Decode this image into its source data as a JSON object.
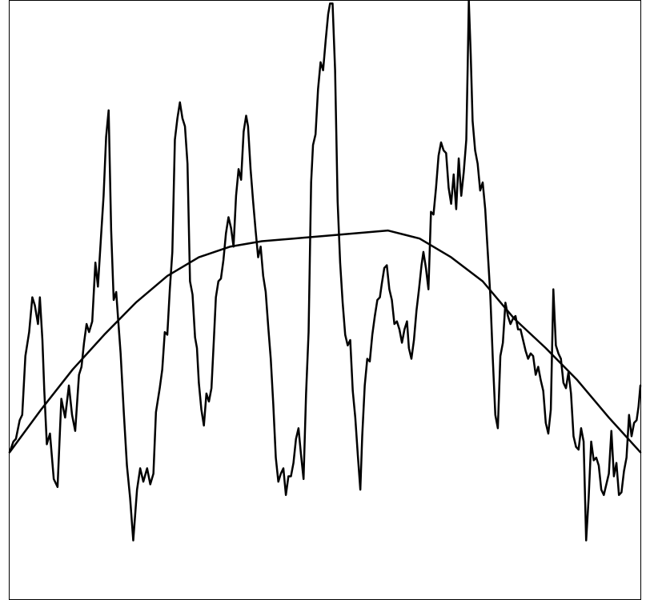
{
  "chart_data": {
    "type": "line",
    "title": "",
    "xlabel": "",
    "ylabel": "",
    "grid": false,
    "legend": "none",
    "xlim": [
      0,
      1
    ],
    "ylim": [
      -1.08,
      1.16
    ],
    "colors": {
      "line": "#000000",
      "frame": "#000000",
      "background": "#ffffff"
    },
    "series": [
      {
        "values": [
          [
            0.0,
            -0.53
          ],
          [
            0.006,
            -0.49
          ],
          [
            0.01,
            -0.48
          ],
          [
            0.016,
            -0.41
          ],
          [
            0.02,
            -0.39
          ],
          [
            0.025,
            -0.17
          ],
          [
            0.031,
            -0.08
          ],
          [
            0.036,
            0.05
          ],
          [
            0.04,
            0.02
          ],
          [
            0.045,
            -0.05
          ],
          [
            0.048,
            0.05
          ],
          [
            0.052,
            -0.11
          ],
          [
            0.055,
            -0.3
          ],
          [
            0.059,
            -0.5
          ],
          [
            0.064,
            -0.46
          ],
          [
            0.07,
            -0.63
          ],
          [
            0.076,
            -0.66
          ],
          [
            0.082,
            -0.33
          ],
          [
            0.088,
            -0.4
          ],
          [
            0.094,
            -0.28
          ],
          [
            0.099,
            -0.39
          ],
          [
            0.104,
            -0.45
          ],
          [
            0.11,
            -0.24
          ],
          [
            0.114,
            -0.21
          ],
          [
            0.118,
            -0.12
          ],
          [
            0.122,
            -0.05
          ],
          [
            0.126,
            -0.08
          ],
          [
            0.131,
            -0.04
          ],
          [
            0.136,
            0.18
          ],
          [
            0.14,
            0.09
          ],
          [
            0.145,
            0.28
          ],
          [
            0.149,
            0.43
          ],
          [
            0.153,
            0.65
          ],
          [
            0.157,
            0.75
          ],
          [
            0.161,
            0.3
          ],
          [
            0.165,
            0.04
          ],
          [
            0.169,
            0.07
          ],
          [
            0.172,
            -0.03
          ],
          [
            0.176,
            -0.16
          ],
          [
            0.181,
            -0.38
          ],
          [
            0.186,
            -0.58
          ],
          [
            0.191,
            -0.7
          ],
          [
            0.196,
            -0.86
          ],
          [
            0.202,
            -0.67
          ],
          [
            0.207,
            -0.59
          ],
          [
            0.212,
            -0.64
          ],
          [
            0.218,
            -0.59
          ],
          [
            0.223,
            -0.65
          ],
          [
            0.228,
            -0.61
          ],
          [
            0.232,
            -0.38
          ],
          [
            0.238,
            -0.29
          ],
          [
            0.242,
            -0.22
          ],
          [
            0.246,
            -0.08
          ],
          [
            0.25,
            -0.09
          ],
          [
            0.254,
            0.08
          ],
          [
            0.258,
            0.22
          ],
          [
            0.262,
            0.64
          ],
          [
            0.266,
            0.72
          ],
          [
            0.27,
            0.78
          ],
          [
            0.274,
            0.72
          ],
          [
            0.278,
            0.69
          ],
          [
            0.282,
            0.55
          ],
          [
            0.286,
            0.11
          ],
          [
            0.29,
            0.06
          ],
          [
            0.294,
            -0.1
          ],
          [
            0.297,
            -0.14
          ],
          [
            0.3,
            -0.27
          ],
          [
            0.304,
            -0.37
          ],
          [
            0.308,
            -0.43
          ],
          [
            0.312,
            -0.31
          ],
          [
            0.316,
            -0.34
          ],
          [
            0.32,
            -0.29
          ],
          [
            0.324,
            -0.1
          ],
          [
            0.327,
            0.05
          ],
          [
            0.331,
            0.11
          ],
          [
            0.335,
            0.12
          ],
          [
            0.339,
            0.19
          ],
          [
            0.343,
            0.29
          ],
          [
            0.347,
            0.35
          ],
          [
            0.351,
            0.31
          ],
          [
            0.355,
            0.24
          ],
          [
            0.359,
            0.43
          ],
          [
            0.363,
            0.53
          ],
          [
            0.367,
            0.49
          ],
          [
            0.371,
            0.67
          ],
          [
            0.375,
            0.73
          ],
          [
            0.378,
            0.69
          ],
          [
            0.382,
            0.53
          ],
          [
            0.386,
            0.41
          ],
          [
            0.39,
            0.3
          ],
          [
            0.394,
            0.2
          ],
          [
            0.398,
            0.24
          ],
          [
            0.402,
            0.13
          ],
          [
            0.406,
            0.07
          ],
          [
            0.41,
            -0.06
          ],
          [
            0.414,
            -0.18
          ],
          [
            0.418,
            -0.35
          ],
          [
            0.422,
            -0.55
          ],
          [
            0.426,
            -0.64
          ],
          [
            0.43,
            -0.61
          ],
          [
            0.434,
            -0.59
          ],
          [
            0.438,
            -0.69
          ],
          [
            0.442,
            -0.62
          ],
          [
            0.446,
            -0.62
          ],
          [
            0.45,
            -0.57
          ],
          [
            0.454,
            -0.48
          ],
          [
            0.458,
            -0.44
          ],
          [
            0.462,
            -0.54
          ],
          [
            0.466,
            -0.63
          ],
          [
            0.47,
            -0.31
          ],
          [
            0.474,
            -0.08
          ],
          [
            0.478,
            0.48
          ],
          [
            0.481,
            0.62
          ],
          [
            0.485,
            0.66
          ],
          [
            0.489,
            0.83
          ],
          [
            0.493,
            0.93
          ],
          [
            0.497,
            0.9
          ],
          [
            0.501,
            1.01
          ],
          [
            0.505,
            1.11
          ],
          [
            0.508,
            1.15
          ],
          [
            0.512,
            1.15
          ],
          [
            0.516,
            0.9
          ],
          [
            0.52,
            0.41
          ],
          [
            0.524,
            0.18
          ],
          [
            0.528,
            0.03
          ],
          [
            0.532,
            -0.09
          ],
          [
            0.536,
            -0.13
          ],
          [
            0.54,
            -0.11
          ],
          [
            0.544,
            -0.3
          ],
          [
            0.548,
            -0.4
          ],
          [
            0.552,
            -0.54
          ],
          [
            0.556,
            -0.67
          ],
          [
            0.559,
            -0.47
          ],
          [
            0.563,
            -0.28
          ],
          [
            0.567,
            -0.18
          ],
          [
            0.571,
            -0.19
          ],
          [
            0.575,
            -0.09
          ],
          [
            0.579,
            -0.02
          ],
          [
            0.583,
            0.04
          ],
          [
            0.587,
            0.05
          ],
          [
            0.59,
            0.1
          ],
          [
            0.594,
            0.16
          ],
          [
            0.598,
            0.17
          ],
          [
            0.602,
            0.08
          ],
          [
            0.606,
            0.04
          ],
          [
            0.61,
            -0.05
          ],
          [
            0.614,
            -0.04
          ],
          [
            0.618,
            -0.07
          ],
          [
            0.622,
            -0.12
          ],
          [
            0.626,
            -0.07
          ],
          [
            0.63,
            -0.04
          ],
          [
            0.633,
            -0.14
          ],
          [
            0.637,
            -0.18
          ],
          [
            0.641,
            -0.11
          ],
          [
            0.645,
            0.0
          ],
          [
            0.649,
            0.08
          ],
          [
            0.653,
            0.17
          ],
          [
            0.656,
            0.22
          ],
          [
            0.66,
            0.16
          ],
          [
            0.664,
            0.08
          ],
          [
            0.668,
            0.37
          ],
          [
            0.672,
            0.36
          ],
          [
            0.676,
            0.46
          ],
          [
            0.68,
            0.58
          ],
          [
            0.684,
            0.63
          ],
          [
            0.688,
            0.6
          ],
          [
            0.692,
            0.59
          ],
          [
            0.696,
            0.46
          ],
          [
            0.7,
            0.4
          ],
          [
            0.704,
            0.51
          ],
          [
            0.708,
            0.38
          ],
          [
            0.712,
            0.57
          ],
          [
            0.716,
            0.43
          ],
          [
            0.72,
            0.52
          ],
          [
            0.724,
            0.64
          ],
          [
            0.726,
            0.89
          ],
          [
            0.728,
            1.16
          ],
          [
            0.731,
            0.96
          ],
          [
            0.734,
            0.71
          ],
          [
            0.738,
            0.6
          ],
          [
            0.742,
            0.55
          ],
          [
            0.746,
            0.45
          ],
          [
            0.75,
            0.48
          ],
          [
            0.754,
            0.38
          ],
          [
            0.758,
            0.22
          ],
          [
            0.762,
            0.06
          ],
          [
            0.766,
            -0.18
          ],
          [
            0.77,
            -0.39
          ],
          [
            0.774,
            -0.44
          ],
          [
            0.778,
            -0.17
          ],
          [
            0.782,
            -0.12
          ],
          [
            0.786,
            0.03
          ],
          [
            0.79,
            -0.02
          ],
          [
            0.794,
            -0.05
          ],
          [
            0.798,
            -0.03
          ],
          [
            0.802,
            -0.02
          ],
          [
            0.806,
            -0.07
          ],
          [
            0.81,
            -0.07
          ],
          [
            0.814,
            -0.11
          ],
          [
            0.818,
            -0.15
          ],
          [
            0.822,
            -0.18
          ],
          [
            0.826,
            -0.16
          ],
          [
            0.83,
            -0.17
          ],
          [
            0.834,
            -0.24
          ],
          [
            0.838,
            -0.21
          ],
          [
            0.842,
            -0.26
          ],
          [
            0.846,
            -0.3
          ],
          [
            0.85,
            -0.42
          ],
          [
            0.854,
            -0.46
          ],
          [
            0.858,
            -0.37
          ],
          [
            0.862,
            0.08
          ],
          [
            0.866,
            -0.13
          ],
          [
            0.87,
            -0.16
          ],
          [
            0.874,
            -0.18
          ],
          [
            0.878,
            -0.27
          ],
          [
            0.882,
            -0.29
          ],
          [
            0.886,
            -0.23
          ],
          [
            0.89,
            -0.31
          ],
          [
            0.894,
            -0.47
          ],
          [
            0.898,
            -0.51
          ],
          [
            0.902,
            -0.52
          ],
          [
            0.906,
            -0.44
          ],
          [
            0.91,
            -0.49
          ],
          [
            0.914,
            -0.86
          ],
          [
            0.918,
            -0.7
          ],
          [
            0.922,
            -0.49
          ],
          [
            0.926,
            -0.56
          ],
          [
            0.93,
            -0.55
          ],
          [
            0.934,
            -0.58
          ],
          [
            0.938,
            -0.67
          ],
          [
            0.942,
            -0.69
          ],
          [
            0.946,
            -0.65
          ],
          [
            0.95,
            -0.61
          ],
          [
            0.954,
            -0.45
          ],
          [
            0.958,
            -0.62
          ],
          [
            0.962,
            -0.57
          ],
          [
            0.966,
            -0.69
          ],
          [
            0.97,
            -0.68
          ],
          [
            0.974,
            -0.6
          ],
          [
            0.978,
            -0.55
          ],
          [
            0.982,
            -0.39
          ],
          [
            0.986,
            -0.47
          ],
          [
            0.99,
            -0.42
          ],
          [
            0.994,
            -0.41
          ],
          [
            0.997,
            -0.36
          ],
          [
            1.0,
            -0.28
          ]
        ]
      },
      {
        "values": [
          [
            0.0,
            -0.53
          ],
          [
            0.05,
            -0.37
          ],
          [
            0.1,
            -0.22
          ],
          [
            0.15,
            -0.09
          ],
          [
            0.2,
            0.03
          ],
          [
            0.25,
            0.13
          ],
          [
            0.3,
            0.2
          ],
          [
            0.35,
            0.24
          ],
          [
            0.4,
            0.26
          ],
          [
            0.45,
            0.27
          ],
          [
            0.5,
            0.28
          ],
          [
            0.55,
            0.29
          ],
          [
            0.6,
            0.3
          ],
          [
            0.65,
            0.27
          ],
          [
            0.7,
            0.2
          ],
          [
            0.75,
            0.11
          ],
          [
            0.8,
            -0.03
          ],
          [
            0.85,
            -0.14
          ],
          [
            0.9,
            -0.26
          ],
          [
            0.95,
            -0.4
          ],
          [
            1.0,
            -0.53
          ]
        ]
      }
    ]
  }
}
